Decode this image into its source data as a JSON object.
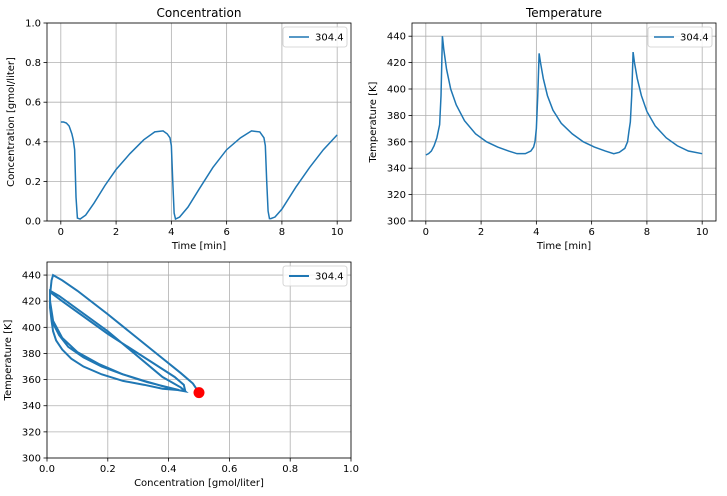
{
  "chart_data": [
    {
      "type": "line",
      "title": "Concentration",
      "xlabel": "Time [min]",
      "ylabel": "Concentration [gmol/liter]",
      "xlim": [
        -0.5,
        10.5
      ],
      "ylim": [
        0,
        1.0
      ],
      "xticks": [
        0,
        2,
        4,
        6,
        8,
        10
      ],
      "yticks": [
        0.0,
        0.2,
        0.4,
        0.6,
        0.8,
        1.0
      ],
      "xtick_labels": [
        "0",
        "2",
        "4",
        "6",
        "8",
        "10"
      ],
      "ytick_labels": [
        "0.0",
        "0.2",
        "0.4",
        "0.6",
        "0.8",
        "1.0"
      ],
      "grid": true,
      "legend_position": "upper right",
      "colors": {
        "line": "#1f77b4"
      },
      "series": [
        {
          "name": "304.4",
          "x": [
            0,
            0.1,
            0.2,
            0.3,
            0.4,
            0.45,
            0.5,
            0.55,
            0.6,
            0.7,
            0.9,
            1.2,
            1.6,
            2.0,
            2.5,
            3.0,
            3.4,
            3.7,
            3.85,
            3.95,
            4.0,
            4.05,
            4.1,
            4.15,
            4.3,
            4.6,
            5.0,
            5.5,
            6.0,
            6.5,
            6.9,
            7.2,
            7.35,
            7.4,
            7.45,
            7.5,
            7.55,
            7.6,
            7.75,
            8.0,
            8.5,
            9.0,
            9.5,
            10.0
          ],
          "y": [
            0.5,
            0.5,
            0.495,
            0.48,
            0.44,
            0.41,
            0.36,
            0.12,
            0.015,
            0.01,
            0.03,
            0.09,
            0.18,
            0.26,
            0.34,
            0.41,
            0.45,
            0.455,
            0.44,
            0.42,
            0.38,
            0.2,
            0.04,
            0.01,
            0.02,
            0.07,
            0.16,
            0.27,
            0.36,
            0.42,
            0.455,
            0.45,
            0.42,
            0.38,
            0.2,
            0.05,
            0.012,
            0.012,
            0.02,
            0.06,
            0.17,
            0.27,
            0.36,
            0.435
          ]
        }
      ]
    },
    {
      "type": "line",
      "title": "Temperature",
      "xlabel": "Time [min]",
      "ylabel": "Temperature [K]",
      "xlim": [
        -0.5,
        10.5
      ],
      "ylim": [
        300,
        450
      ],
      "xticks": [
        0,
        2,
        4,
        6,
        8,
        10
      ],
      "yticks": [
        300,
        320,
        340,
        360,
        380,
        400,
        420,
        440
      ],
      "xtick_labels": [
        "0",
        "2",
        "4",
        "6",
        "8",
        "10"
      ],
      "ytick_labels": [
        "300",
        "320",
        "340",
        "360",
        "380",
        "400",
        "420",
        "440"
      ],
      "grid": true,
      "legend_position": "upper right",
      "colors": {
        "line": "#1f77b4"
      },
      "series": [
        {
          "name": "304.4",
          "x": [
            0,
            0.1,
            0.2,
            0.3,
            0.4,
            0.5,
            0.55,
            0.6,
            0.65,
            0.75,
            0.9,
            1.1,
            1.4,
            1.8,
            2.2,
            2.6,
            3.0,
            3.3,
            3.6,
            3.8,
            3.9,
            3.95,
            4.0,
            4.05,
            4.1,
            4.15,
            4.25,
            4.4,
            4.6,
            4.9,
            5.3,
            5.7,
            6.1,
            6.5,
            6.8,
            7.0,
            7.2,
            7.3,
            7.35,
            7.4,
            7.45,
            7.5,
            7.55,
            7.65,
            7.8,
            8.0,
            8.3,
            8.7,
            9.1,
            9.5,
            10.0
          ],
          "y": [
            350,
            351,
            353,
            357,
            363,
            373,
            395,
            440,
            430,
            415,
            400,
            388,
            376,
            366,
            360,
            356,
            353,
            351,
            351,
            353,
            356,
            360,
            370,
            395,
            427,
            420,
            408,
            395,
            384,
            374,
            366,
            360,
            356,
            353,
            351,
            352,
            355,
            360,
            368,
            375,
            395,
            428,
            420,
            408,
            395,
            383,
            372,
            363,
            357,
            353,
            351
          ]
        }
      ]
    },
    {
      "type": "line",
      "title": "",
      "xlabel": "Concentration [gmol/liter]",
      "ylabel": "Temperature [K]",
      "xlim": [
        0,
        1.0
      ],
      "ylim": [
        300,
        450
      ],
      "xticks": [
        0.0,
        0.2,
        0.4,
        0.6,
        0.8,
        1.0
      ],
      "yticks": [
        300,
        320,
        340,
        360,
        380,
        400,
        420,
        440
      ],
      "xtick_labels": [
        "0.0",
        "0.2",
        "0.4",
        "0.6",
        "0.8",
        "1.0"
      ],
      "ytick_labels": [
        "300",
        "320",
        "340",
        "360",
        "380",
        "400",
        "420",
        "440"
      ],
      "grid": true,
      "legend_position": "upper right",
      "colors": {
        "line": "#1f77b4",
        "marker": "#ff0000"
      },
      "series": [
        {
          "name": "304.4",
          "x": [
            0.5,
            0.48,
            0.44,
            0.36,
            0.2,
            0.1,
            0.05,
            0.02,
            0.015,
            0.01,
            0.01,
            0.015,
            0.02,
            0.03,
            0.05,
            0.08,
            0.12,
            0.18,
            0.25,
            0.32,
            0.38,
            0.43,
            0.455,
            0.45,
            0.42,
            0.38,
            0.2,
            0.05,
            0.01,
            0.01,
            0.012,
            0.02,
            0.04,
            0.07,
            0.12,
            0.18,
            0.25,
            0.32,
            0.38,
            0.43,
            0.455,
            0.44,
            0.38,
            0.2,
            0.04,
            0.01,
            0.01,
            0.02,
            0.05,
            0.1,
            0.17,
            0.25,
            0.33,
            0.4,
            0.435
          ],
          "y": [
            350,
            357,
            365,
            380,
            410,
            428,
            436,
            440,
            436,
            425,
            415,
            405,
            397,
            390,
            383,
            376,
            370,
            364,
            359,
            356,
            353,
            352,
            351,
            356,
            362,
            368,
            395,
            420,
            427,
            420,
            412,
            403,
            394,
            385,
            377,
            370,
            364,
            359,
            355,
            352,
            351,
            354,
            362,
            397,
            424,
            428,
            420,
            405,
            392,
            381,
            372,
            364,
            358,
            354,
            352
          ]
        }
      ],
      "marker_point": {
        "x": 0.5,
        "y": 350
      }
    }
  ]
}
